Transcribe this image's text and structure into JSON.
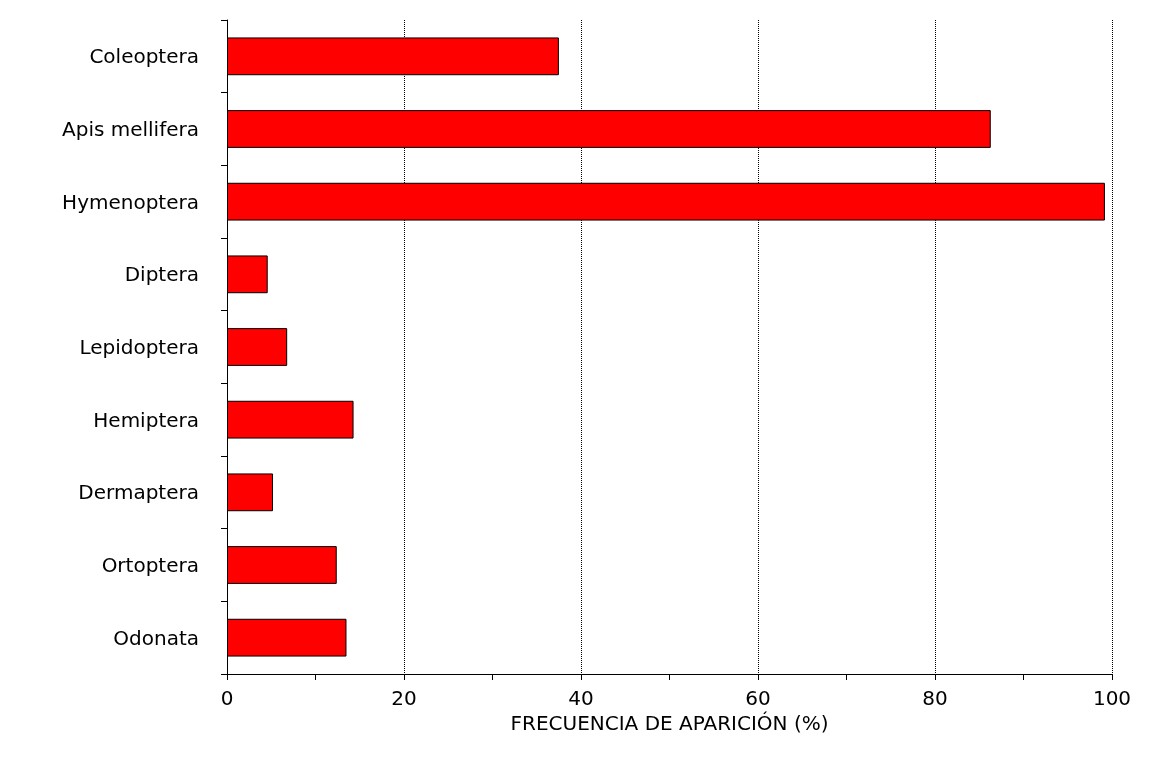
{
  "chart_data": {
    "type": "bar",
    "orientation": "horizontal",
    "xlabel": "FRECUENCIA DE APARICIÓN (%)",
    "categories": [
      "Coleoptera",
      "Apis mellifera",
      "Hymenoptera",
      "Diptera",
      "Lepidoptera",
      "Hemiptera",
      "Dermaptera",
      "Ortoptera",
      "Odonata"
    ],
    "values": [
      37.5,
      86.3,
      99.2,
      4.6,
      6.8,
      14.3,
      5.2,
      12.4,
      13.5
    ],
    "color": "#ff0000",
    "xlim": [
      0,
      100
    ],
    "xticks": [
      0,
      20,
      40,
      60,
      80,
      100
    ],
    "grid": "x"
  }
}
